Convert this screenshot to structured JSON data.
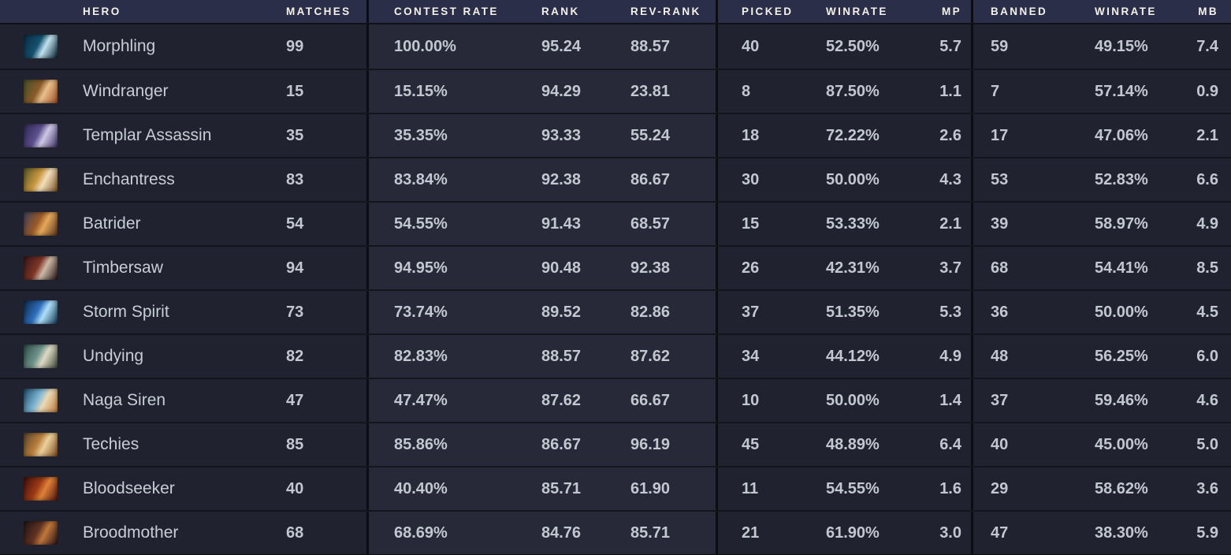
{
  "colors": {
    "page_bg": "#0d0e13",
    "header_bg": "#2b2e49",
    "row_bg": "#212230",
    "row_tint_bg": "#272939",
    "divider": "#0c0d12",
    "header_text": "#f4f1ea",
    "cell_text": "#c3c7d0"
  },
  "table": {
    "columns": [
      {
        "key": "hero",
        "label": "HERO"
      },
      {
        "key": "matches",
        "label": "MATCHES"
      },
      {
        "key": "contest_rate",
        "label": "CONTEST RATE"
      },
      {
        "key": "rank",
        "label": "RANK"
      },
      {
        "key": "rev_rank",
        "label": "REV-RANK"
      },
      {
        "key": "picked",
        "label": "PICKED"
      },
      {
        "key": "pick_winrate",
        "label": "WINRATE"
      },
      {
        "key": "mp",
        "label": "MP"
      },
      {
        "key": "banned",
        "label": "BANNED"
      },
      {
        "key": "ban_winrate",
        "label": "WINRATE"
      },
      {
        "key": "mb",
        "label": "MB"
      }
    ],
    "rows": [
      {
        "hero": "Morphling",
        "icon": "morphling-hero-icon",
        "icon_colors": [
          "#0b2b44",
          "#14516e",
          "#bfe3f0",
          "#0a1e30"
        ],
        "matches": "99",
        "contest_rate": "100.00%",
        "rank": "95.24",
        "rev_rank": "88.57",
        "picked": "40",
        "pick_winrate": "52.50%",
        "mp": "5.7",
        "banned": "59",
        "ban_winrate": "49.15%",
        "mb": "7.4"
      },
      {
        "hero": "Windranger",
        "icon": "windranger-hero-icon",
        "icon_colors": [
          "#44502a",
          "#8a5a28",
          "#e9bf8a",
          "#a14e24"
        ],
        "matches": "15",
        "contest_rate": "15.15%",
        "rank": "94.29",
        "rev_rank": "23.81",
        "picked": "8",
        "pick_winrate": "87.50%",
        "mp": "1.1",
        "banned": "7",
        "ban_winrate": "57.14%",
        "mb": "0.9"
      },
      {
        "hero": "Templar Assassin",
        "icon": "templar-assassin-hero-icon",
        "icon_colors": [
          "#2c2750",
          "#5d4f8e",
          "#cfc8e6",
          "#3b2f63"
        ],
        "matches": "35",
        "contest_rate": "35.35%",
        "rank": "93.33",
        "rev_rank": "55.24",
        "picked": "18",
        "pick_winrate": "72.22%",
        "mp": "2.6",
        "banned": "17",
        "ban_winrate": "47.06%",
        "mb": "2.1"
      },
      {
        "hero": "Enchantress",
        "icon": "enchantress-hero-icon",
        "icon_colors": [
          "#51522a",
          "#c9973f",
          "#f2debc",
          "#7c5424"
        ],
        "matches": "83",
        "contest_rate": "83.84%",
        "rank": "92.38",
        "rev_rank": "86.67",
        "picked": "30",
        "pick_winrate": "50.00%",
        "mp": "4.3",
        "banned": "53",
        "ban_winrate": "52.83%",
        "mb": "6.6"
      },
      {
        "hero": "Batrider",
        "icon": "batrider-hero-icon",
        "icon_colors": [
          "#3c3f5c",
          "#9a5a26",
          "#e6a85a",
          "#57331c"
        ],
        "matches": "54",
        "contest_rate": "54.55%",
        "rank": "91.43",
        "rev_rank": "68.57",
        "picked": "15",
        "pick_winrate": "53.33%",
        "mp": "2.1",
        "banned": "39",
        "ban_winrate": "58.97%",
        "mb": "4.9"
      },
      {
        "hero": "Timbersaw",
        "icon": "timbersaw-hero-icon",
        "icon_colors": [
          "#33161a",
          "#7e3526",
          "#cdb9a6",
          "#241316"
        ],
        "matches": "94",
        "contest_rate": "94.95%",
        "rank": "90.48",
        "rev_rank": "92.38",
        "picked": "26",
        "pick_winrate": "42.31%",
        "mp": "3.7",
        "banned": "68",
        "ban_winrate": "54.41%",
        "mb": "8.5"
      },
      {
        "hero": "Storm Spirit",
        "icon": "storm-spirit-hero-icon",
        "icon_colors": [
          "#0c2746",
          "#2f6fbe",
          "#aee0fa",
          "#123653"
        ],
        "matches": "73",
        "contest_rate": "73.74%",
        "rank": "89.52",
        "rev_rank": "82.86",
        "picked": "37",
        "pick_winrate": "51.35%",
        "mp": "5.3",
        "banned": "36",
        "ban_winrate": "50.00%",
        "mb": "4.5"
      },
      {
        "hero": "Undying",
        "icon": "undying-hero-icon",
        "icon_colors": [
          "#2f4a44",
          "#6e948a",
          "#ded9c4",
          "#3c4a3c"
        ],
        "matches": "82",
        "contest_rate": "82.83%",
        "rank": "88.57",
        "rev_rank": "87.62",
        "picked": "34",
        "pick_winrate": "44.12%",
        "mp": "4.9",
        "banned": "48",
        "ban_winrate": "56.25%",
        "mb": "6.0"
      },
      {
        "hero": "Naga Siren",
        "icon": "naga-siren-hero-icon",
        "icon_colors": [
          "#1c4a66",
          "#7fb6d4",
          "#ead9b6",
          "#c07a3a"
        ],
        "matches": "47",
        "contest_rate": "47.47%",
        "rank": "87.62",
        "rev_rank": "66.67",
        "picked": "10",
        "pick_winrate": "50.00%",
        "mp": "1.4",
        "banned": "37",
        "ban_winrate": "59.46%",
        "mb": "4.6"
      },
      {
        "hero": "Techies",
        "icon": "techies-hero-icon",
        "icon_colors": [
          "#54442c",
          "#b97f3c",
          "#ecd09a",
          "#7e4a20"
        ],
        "matches": "85",
        "contest_rate": "85.86%",
        "rank": "86.67",
        "rev_rank": "96.19",
        "picked": "45",
        "pick_winrate": "48.89%",
        "mp": "6.4",
        "banned": "40",
        "ban_winrate": "45.00%",
        "mb": "5.0"
      },
      {
        "hero": "Bloodseeker",
        "icon": "bloodseeker-hero-icon",
        "icon_colors": [
          "#3c0f0a",
          "#9c3a16",
          "#e08138",
          "#4e120a"
        ],
        "matches": "40",
        "contest_rate": "40.40%",
        "rank": "85.71",
        "rev_rank": "61.90",
        "picked": "11",
        "pick_winrate": "54.55%",
        "mp": "1.6",
        "banned": "29",
        "ban_winrate": "58.62%",
        "mb": "3.6"
      },
      {
        "hero": "Broodmother",
        "icon": "broodmother-hero-icon",
        "icon_colors": [
          "#1f1216",
          "#5f3322",
          "#c0763a",
          "#261318"
        ],
        "matches": "68",
        "contest_rate": "68.69%",
        "rank": "84.76",
        "rev_rank": "85.71",
        "picked": "21",
        "pick_winrate": "61.90%",
        "mp": "3.0",
        "banned": "47",
        "ban_winrate": "38.30%",
        "mb": "5.9"
      }
    ]
  }
}
